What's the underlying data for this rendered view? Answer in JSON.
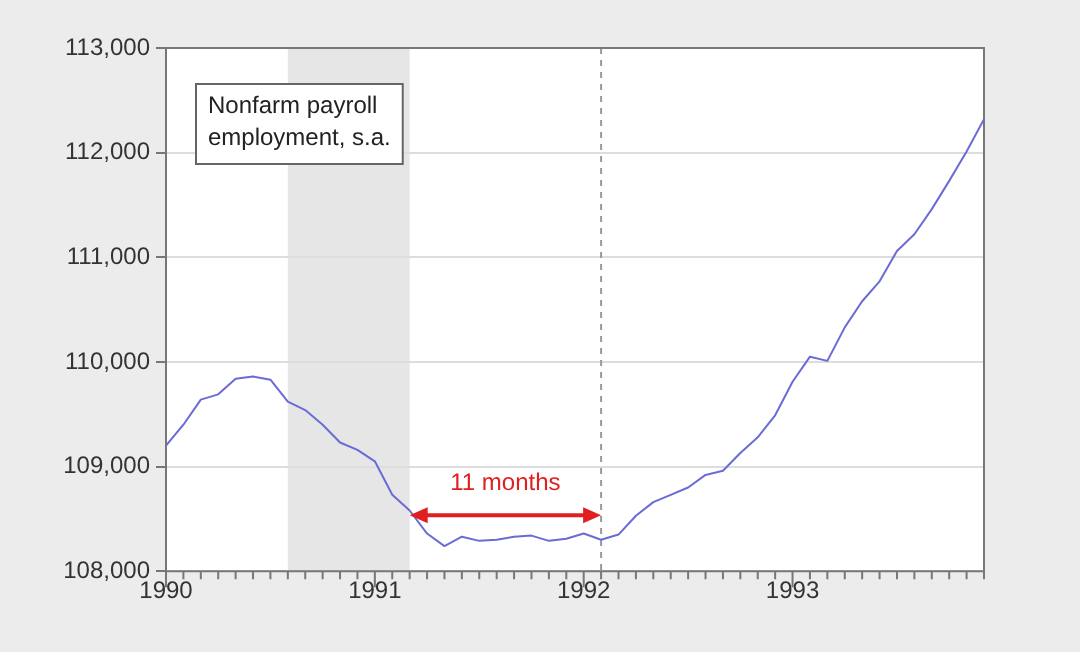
{
  "chart_data": {
    "type": "line",
    "x": [
      "1990-01",
      "1990-02",
      "1990-03",
      "1990-04",
      "1990-05",
      "1990-06",
      "1990-07",
      "1990-08",
      "1990-09",
      "1990-10",
      "1990-11",
      "1990-12",
      "1991-01",
      "1991-02",
      "1991-03",
      "1991-04",
      "1991-05",
      "1991-06",
      "1991-07",
      "1991-08",
      "1991-09",
      "1991-10",
      "1991-11",
      "1991-12",
      "1992-01",
      "1992-02",
      "1992-03",
      "1992-04",
      "1992-05",
      "1992-06",
      "1992-07",
      "1992-08",
      "1992-09",
      "1992-10",
      "1992-11",
      "1992-12",
      "1993-01",
      "1993-02",
      "1993-03",
      "1993-04",
      "1993-05",
      "1993-06",
      "1993-07",
      "1993-08",
      "1993-09",
      "1993-10",
      "1993-11",
      "1993-12"
    ],
    "series": [
      {
        "color": "#6b6bd6",
        "values": [
          109200,
          109400,
          109640,
          109690,
          109840,
          109860,
          109830,
          109620,
          109540,
          109400,
          109230,
          109160,
          109050,
          108730,
          108580,
          108360,
          108240,
          108330,
          108290,
          108300,
          108330,
          108340,
          108290,
          108310,
          108360,
          108300,
          108350,
          108530,
          108660,
          108730,
          108800,
          108920,
          108960,
          109130,
          109280,
          109490,
          109810,
          110050,
          110010,
          110330,
          110580,
          110770,
          111060,
          111220,
          111460,
          111730,
          112010,
          112320
        ]
      }
    ],
    "xlim": [
      "1990-01",
      "1993-12"
    ],
    "xticks": [
      "1990",
      "1991",
      "1992",
      "1993"
    ],
    "ylim": [
      108000,
      113000
    ],
    "yticks": [
      {
        "value": 108000,
        "label": "108,000"
      },
      {
        "value": 109000,
        "label": "109,000"
      },
      {
        "value": 110000,
        "label": "110,000"
      },
      {
        "value": 111000,
        "label": "111,000"
      },
      {
        "value": 112000,
        "label": "112,000"
      },
      {
        "value": 113000,
        "label": "113,000"
      }
    ],
    "grid": "y",
    "legend": false,
    "marker": "none",
    "line_style": "solid",
    "bands": [
      {
        "axis": "x",
        "from": "1990-08",
        "to": "1991-03",
        "color": "#e6e6e6"
      }
    ],
    "ref_lines": [
      {
        "axis": "x",
        "value": "1992-02",
        "color": "#999999",
        "line_style": "dashed"
      }
    ],
    "annotations": [
      "Nonfarm payroll employment, s.a.",
      "11 months"
    ]
  }
}
